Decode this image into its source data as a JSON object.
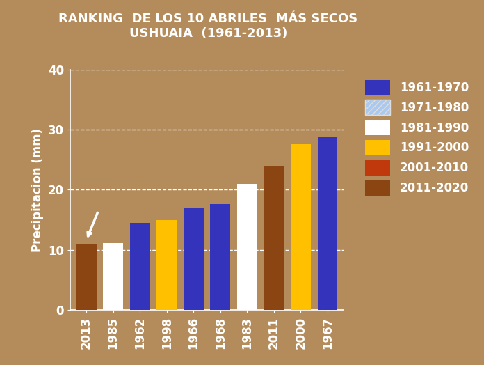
{
  "chart_data": {
    "type": "bar",
    "title": "RANKING  DE LOS 10 ABRILES  MÁS SECOS\nUSHUAIA  (1961-2013)",
    "y_label": "Precipitacion (mm)",
    "categories": [
      "2013",
      "1985",
      "1962",
      "1998",
      "1966",
      "1968",
      "1983",
      "2011",
      "2000",
      "1967"
    ],
    "series": [
      {
        "name": "1961-1970",
        "color": "#3333bb",
        "values": [
          null,
          null,
          14.5,
          null,
          17,
          17.6,
          null,
          null,
          null,
          28.8
        ]
      },
      {
        "name": "1971-1980",
        "color": "#a9c9f0",
        "values": [
          null,
          null,
          null,
          null,
          null,
          null,
          null,
          null,
          null,
          null
        ]
      },
      {
        "name": "1981-1990",
        "color": "#ffffff",
        "values": [
          null,
          11.2,
          null,
          null,
          null,
          null,
          21,
          null,
          null,
          null
        ]
      },
      {
        "name": "1991-2000",
        "color": "#ffc000",
        "values": [
          null,
          null,
          null,
          15,
          null,
          null,
          null,
          null,
          27.6,
          null
        ]
      },
      {
        "name": "2001-2010",
        "color": "#c0390c",
        "values": [
          null,
          null,
          null,
          null,
          null,
          null,
          null,
          null,
          null,
          null
        ]
      },
      {
        "name": "2011-2020",
        "color": "#8b4513",
        "values": [
          11,
          null,
          null,
          null,
          null,
          null,
          null,
          24,
          null,
          null
        ]
      }
    ],
    "ylim": [
      0,
      40
    ],
    "yticks": [
      0,
      10,
      20,
      30,
      40
    ],
    "grid": true,
    "legend": "upper right"
  }
}
